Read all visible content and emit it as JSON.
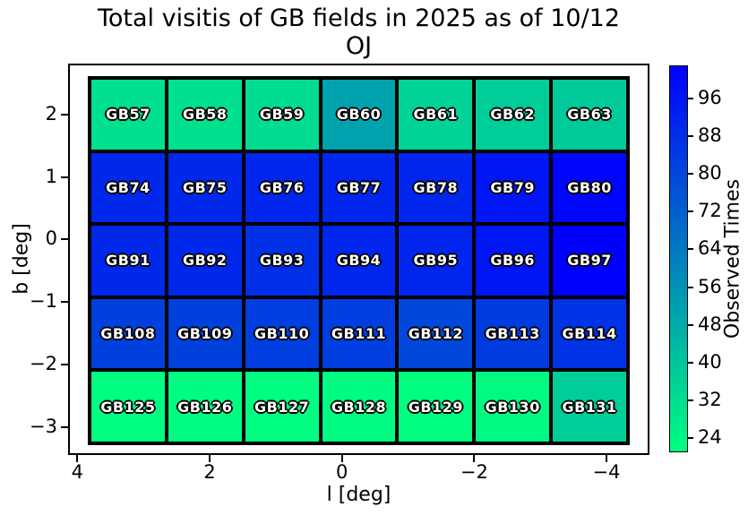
{
  "chart_data": {
    "type": "heatmap",
    "title": "Total visitis of GB fields in 2025 as of 10/12",
    "subtitle": "OJ",
    "xlabel": "l [deg]",
    "ylabel": "b [deg]",
    "x_axis": {
      "inverted": true,
      "max": 4.14,
      "min": -4.65,
      "ticks": [
        {
          "label": "4",
          "value": 4
        },
        {
          "label": "2",
          "value": 2
        },
        {
          "label": "0",
          "value": 0
        },
        {
          "label": "−2",
          "value": -2
        },
        {
          "label": "−4",
          "value": -4
        }
      ]
    },
    "y_axis": {
      "max": 2.81,
      "min": -3.44,
      "ticks": [
        {
          "label": "2",
          "value": 2
        },
        {
          "label": "1",
          "value": 1
        },
        {
          "label": "0",
          "value": 0
        },
        {
          "label": "−1",
          "value": -1
        },
        {
          "label": "−2",
          "value": -2
        },
        {
          "label": "−3",
          "value": -3
        }
      ]
    },
    "colormap": {
      "name": "winter_r",
      "vmin": 21,
      "vmax": 103,
      "min_color": "#00ff7f",
      "max_color": "#0000ff"
    },
    "colorbar": {
      "label": "Observed Times",
      "ticks": [
        24,
        32,
        40,
        48,
        56,
        64,
        72,
        80,
        88,
        96
      ]
    },
    "grid_on": false,
    "rows": [
      {
        "cells": [
          {
            "label": "GB57",
            "value": 31
          },
          {
            "label": "GB58",
            "value": 31
          },
          {
            "label": "GB59",
            "value": 32
          },
          {
            "label": "GB60",
            "value": 51
          },
          {
            "label": "GB61",
            "value": 35
          },
          {
            "label": "GB62",
            "value": 37
          },
          {
            "label": "GB63",
            "value": 38
          }
        ]
      },
      {
        "cells": [
          {
            "label": "GB74",
            "value": 90
          },
          {
            "label": "GB75",
            "value": 90
          },
          {
            "label": "GB76",
            "value": 91
          },
          {
            "label": "GB77",
            "value": 91
          },
          {
            "label": "GB78",
            "value": 91
          },
          {
            "label": "GB79",
            "value": 96
          },
          {
            "label": "GB80",
            "value": 101
          }
        ]
      },
      {
        "cells": [
          {
            "label": "GB91",
            "value": 90
          },
          {
            "label": "GB92",
            "value": 90
          },
          {
            "label": "GB93",
            "value": 88
          },
          {
            "label": "GB94",
            "value": 91
          },
          {
            "label": "GB95",
            "value": 91
          },
          {
            "label": "GB96",
            "value": 96
          },
          {
            "label": "GB97",
            "value": 103
          }
        ]
      },
      {
        "cells": [
          {
            "label": "GB108",
            "value": 82
          },
          {
            "label": "GB109",
            "value": 82
          },
          {
            "label": "GB110",
            "value": 83
          },
          {
            "label": "GB111",
            "value": 83
          },
          {
            "label": "GB112",
            "value": 80
          },
          {
            "label": "GB113",
            "value": 84
          },
          {
            "label": "GB114",
            "value": 87
          }
        ]
      },
      {
        "cells": [
          {
            "label": "GB125",
            "value": 21
          },
          {
            "label": "GB126",
            "value": 22
          },
          {
            "label": "GB127",
            "value": 21
          },
          {
            "label": "GB128",
            "value": 22
          },
          {
            "label": "GB129",
            "value": 21
          },
          {
            "label": "GB130",
            "value": 23
          },
          {
            "label": "GB131",
            "value": 37
          }
        ]
      }
    ]
  }
}
